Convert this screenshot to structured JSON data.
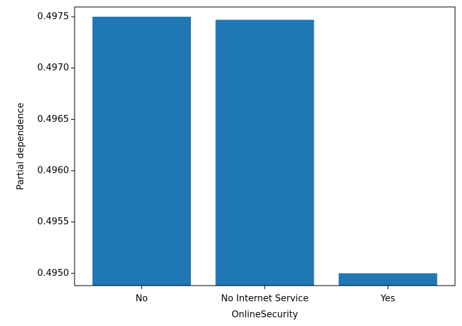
{
  "chart_data": {
    "type": "bar",
    "categories": [
      "No",
      "No Internet Service",
      "Yes"
    ],
    "values": [
      0.4975,
      0.49747,
      0.495
    ],
    "color": "#1f77b4",
    "x_label": "OnlineSecurity",
    "y_label": "Partial dependence",
    "ylim": [
      0.49488,
      0.497595
    ],
    "yticks": [
      {
        "value": 0.495,
        "label": "0.4950"
      },
      0.4955,
      {
        "value": 0.496,
        "label": "0.4960"
      },
      0.4965,
      {
        "value": 0.497,
        "label": "0.4970"
      },
      0.4975
    ],
    "grid": false
  }
}
